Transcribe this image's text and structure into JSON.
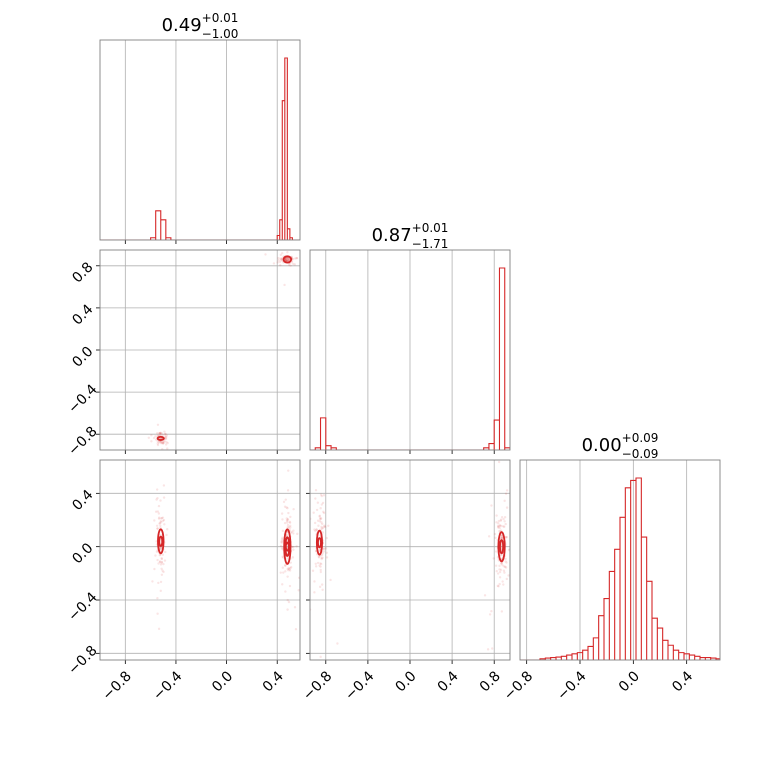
{
  "chart_data": {
    "type": "corner",
    "colors": {
      "series": "#d62728",
      "grid": "#b0b0b0",
      "frame": "#808080"
    },
    "parameters": [
      {
        "title": {
          "median": "0.49",
          "plus": "+0.01",
          "minus": "−1.00"
        },
        "range": [
          -1.0,
          0.58
        ],
        "ticks": [
          -0.8,
          -0.4,
          0.0,
          0.4
        ],
        "tick_labels": [
          "−0.8",
          "−0.4",
          "0.0",
          "0.4"
        ],
        "histogram": {
          "bin_edges": [
            -0.6,
            -0.56,
            -0.52,
            -0.48,
            -0.44,
            0.4,
            0.42,
            0.44,
            0.46,
            0.48,
            0.5,
            0.52,
            0.54
          ],
          "counts": [
            0.01,
            0.13,
            0.09,
            0.01,
            0,
            0.02,
            0.09,
            0.62,
            0.81,
            0.05,
            0.01,
            0
          ]
        }
      },
      {
        "title": {
          "median": "0.87",
          "plus": "+0.01",
          "minus": "−1.71"
        },
        "range": [
          -0.95,
          0.95
        ],
        "ticks": [
          -0.8,
          -0.4,
          0.0,
          0.4,
          0.8
        ],
        "tick_labels": [
          "−0.8",
          "−0.4",
          "0.0",
          "0.4",
          "0.8"
        ],
        "histogram": {
          "bin_edges": [
            -0.9,
            -0.85,
            -0.8,
            -0.75,
            -0.7,
            0.7,
            0.75,
            0.8,
            0.85,
            0.9,
            0.95
          ],
          "counts": [
            0.01,
            0.15,
            0.02,
            0.01,
            0,
            0.01,
            0.03,
            0.14,
            0.85,
            0.01
          ]
        }
      },
      {
        "title": {
          "median": "0.00",
          "plus": "+0.09",
          "minus": "−0.09"
        },
        "range": [
          -0.85,
          0.65
        ],
        "ticks": [
          -0.8,
          -0.4,
          0.0,
          0.4
        ],
        "tick_labels": [
          "−0.8",
          "−0.4",
          "0.0",
          "0.4"
        ],
        "histogram": {
          "bin_edges": [
            -0.7,
            -0.66,
            -0.62,
            -0.58,
            -0.54,
            -0.5,
            -0.46,
            -0.42,
            -0.38,
            -0.34,
            -0.3,
            -0.26,
            -0.22,
            -0.18,
            -0.14,
            -0.1,
            -0.06,
            -0.02,
            0.02,
            0.06,
            0.1,
            0.14,
            0.18,
            0.22,
            0.26,
            0.3,
            0.34,
            0.38,
            0.42,
            0.46,
            0.5,
            0.54,
            0.58,
            0.62,
            0.66
          ],
          "counts": [
            0.005,
            0.008,
            0.01,
            0.012,
            0.015,
            0.02,
            0.025,
            0.03,
            0.04,
            0.055,
            0.09,
            0.18,
            0.25,
            0.36,
            0.45,
            0.58,
            0.7,
            0.73,
            0.74,
            0.5,
            0.32,
            0.17,
            0.13,
            0.08,
            0.06,
            0.04,
            0.03,
            0.025,
            0.02,
            0.015,
            0.01,
            0.01,
            0.008,
            0.005
          ]
        }
      }
    ],
    "scatter_panels": [
      {
        "x_param": 0,
        "y_param": 1,
        "clusters": [
          {
            "cx": 0.48,
            "cy": 0.86,
            "sx": 0.025,
            "sy": 0.02,
            "n": 90,
            "contours": [
              {
                "rx": 0.03,
                "ry": 0.03
              }
            ]
          },
          {
            "cx": -0.52,
            "cy": -0.84,
            "sx": 0.03,
            "sy": 0.03,
            "n": 70,
            "contours": [
              {
                "rx": 0.025,
                "ry": 0.015
              }
            ]
          }
        ]
      },
      {
        "x_param": 0,
        "y_param": 2,
        "clusters": [
          {
            "cx": 0.48,
            "cy": 0.0,
            "sx": 0.02,
            "sy": 0.12,
            "n": 140,
            "contours": [
              {
                "rx": 0.025,
                "ry": 0.13
              },
              {
                "rx": 0.015,
                "ry": 0.07
              },
              {
                "rx": 0.008,
                "ry": 0.03
              }
            ]
          },
          {
            "cx": -0.52,
            "cy": 0.04,
            "sx": 0.018,
            "sy": 0.15,
            "n": 100,
            "contours": [
              {
                "rx": 0.022,
                "ry": 0.09
              },
              {
                "rx": 0.01,
                "ry": 0.035
              }
            ]
          }
        ]
      },
      {
        "x_param": 1,
        "y_param": 2,
        "clusters": [
          {
            "cx": 0.87,
            "cy": 0.0,
            "sx": 0.025,
            "sy": 0.14,
            "n": 140,
            "contours": [
              {
                "rx": 0.03,
                "ry": 0.11
              },
              {
                "rx": 0.015,
                "ry": 0.05
              }
            ]
          },
          {
            "cx": -0.86,
            "cy": 0.03,
            "sx": 0.03,
            "sy": 0.16,
            "n": 110,
            "contours": [
              {
                "rx": 0.025,
                "ry": 0.09
              },
              {
                "rx": 0.01,
                "ry": 0.035
              }
            ]
          }
        ]
      }
    ]
  }
}
